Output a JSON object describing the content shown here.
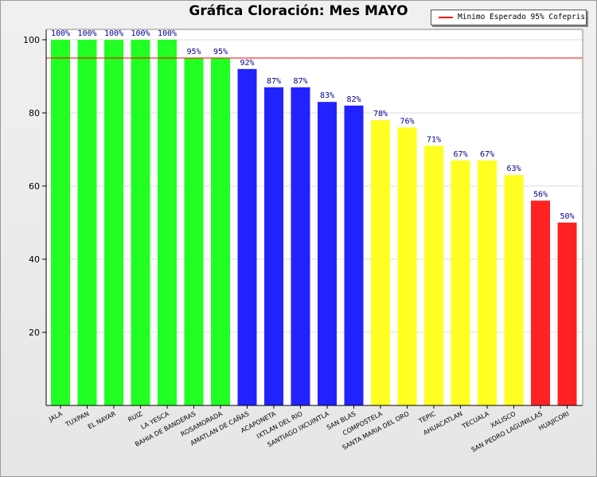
{
  "chart_data": {
    "type": "bar",
    "title": "Gráfica Cloración: Mes MAYO",
    "xlabel": "",
    "ylabel": "",
    "ylim": [
      0,
      100
    ],
    "yticks": [
      20,
      40,
      60,
      80,
      100
    ],
    "grid": true,
    "legend_position": "top-right",
    "categories": [
      "JALA",
      "TUXPAN",
      "EL NAYAR",
      "RUIZ",
      "LA YESCA",
      "BAHIA DE BANDERAS",
      "ROSAMORADA",
      "AMATLAN DE CAÑAS",
      "ACAPONETA",
      "IXTLAN DEL RIO",
      "SANTIAGO IXCUINTLA",
      "SAN BLAS",
      "COMPOSTELA",
      "SANTA MARIA DEL ORO",
      "TEPIC",
      "AHUACATLAN",
      "TECUALA",
      "XALISCO",
      "SAN PEDRO LAGUNILLAS",
      "HUAJICORI"
    ],
    "values": [
      100,
      100,
      100,
      100,
      100,
      95,
      95,
      92,
      87,
      87,
      83,
      82,
      78,
      76,
      71,
      67,
      67,
      63,
      56,
      50
    ],
    "value_labels": [
      "100%",
      "100%",
      "100%",
      "100%",
      "100%",
      "95%",
      "95%",
      "92%",
      "87%",
      "87%",
      "83%",
      "82%",
      "78%",
      "76%",
      "71%",
      "67%",
      "67%",
      "63%",
      "56%",
      "50%"
    ],
    "bar_colors": [
      "#22ff22",
      "#22ff22",
      "#22ff22",
      "#22ff22",
      "#22ff22",
      "#22ff22",
      "#22ff22",
      "#2222ff",
      "#2222ff",
      "#2222ff",
      "#2222ff",
      "#2222ff",
      "#ffff22",
      "#ffff22",
      "#ffff22",
      "#ffff22",
      "#ffff22",
      "#ffff22",
      "#ff2222",
      "#ff2222"
    ],
    "reference_line": {
      "name": "Minimo Esperado 95% Cofepris",
      "value": 95,
      "color": "#ff0000"
    }
  }
}
